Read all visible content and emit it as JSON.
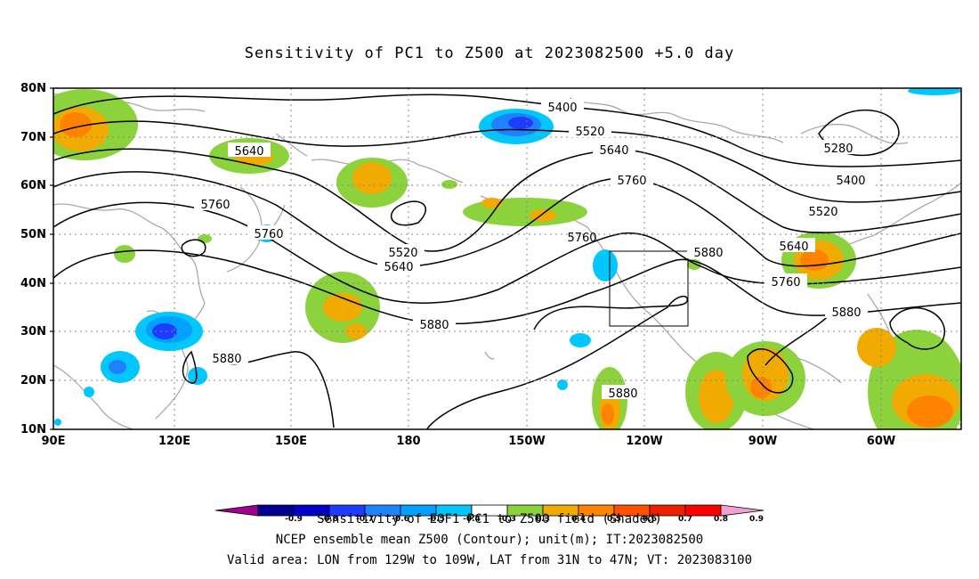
{
  "title": "Sensitivity of PC1 to Z500 at 2023082500 +5.0 day",
  "lat_labels": [
    "80N",
    "70N",
    "60N",
    "50N",
    "40N",
    "30N",
    "20N",
    "10N"
  ],
  "lon_labels": [
    "90E",
    "120E",
    "150E",
    "180",
    "150W",
    "120W",
    "90W",
    "60W"
  ],
  "contour_levels": [
    {
      "text": "5400"
    },
    {
      "text": "5520"
    },
    {
      "text": "5640"
    },
    {
      "text": "5760"
    },
    {
      "text": "5280"
    },
    {
      "text": "5400"
    },
    {
      "text": "5520"
    },
    {
      "text": "5640"
    },
    {
      "text": "5760"
    },
    {
      "text": "5880"
    },
    {
      "text": "5640"
    },
    {
      "text": "5760"
    },
    {
      "text": "5760"
    },
    {
      "text": "5520"
    },
    {
      "text": "5640"
    },
    {
      "text": "5880"
    },
    {
      "text": "5880"
    },
    {
      "text": "5880"
    },
    {
      "text": "5880"
    }
  ],
  "colorbar": {
    "labels": [
      "-0.9",
      "-0.8",
      "-0.7",
      "-0.6",
      "-0.5",
      "-0.4",
      "-0.3",
      "0.3",
      "0.4",
      "0.5",
      "0.6",
      "0.7",
      "0.8",
      "0.9"
    ],
    "colors": [
      "#a00090",
      "#000090",
      "#0000c8",
      "#1e3cff",
      "#1e82ff",
      "#00a0ff",
      "#00c8ff",
      "#ffffff",
      "#8cd23c",
      "#f0aa00",
      "#ff8200",
      "#ff5000",
      "#f01e00",
      "#ff0000",
      "#f0a0d2"
    ]
  },
  "footer": {
    "line1": "Sensitivity of EOF1 PC1 to Z500 field (Shaded)",
    "line2": "NCEP ensemble mean Z500 (Contour); unit(m); IT:2023082500",
    "line3": "Valid area: LON from 129W to 109W, LAT from 31N to 47N; VT: 2023083100"
  },
  "valid_box": {
    "lon_min": "129W",
    "lon_max": "109W",
    "lat_min": "31N",
    "lat_max": "47N"
  }
}
